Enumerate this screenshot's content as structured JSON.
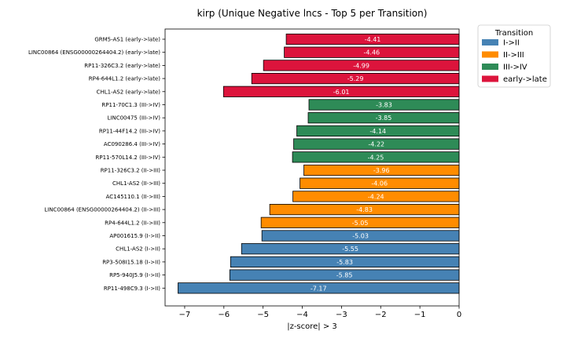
{
  "chart_data": {
    "type": "bar",
    "orientation": "horizontal",
    "title": "kirp (Unique Negative lncs - Top 5 per Transition)",
    "xlabel": "|z-score| > 3",
    "ylabel": "",
    "xlim": [
      -7.5,
      0
    ],
    "xticks": [
      -7,
      -6,
      -5,
      -4,
      -3,
      -2,
      -1,
      0
    ],
    "grid": false,
    "legend": {
      "title": "Transition",
      "placement": "outside right",
      "entries": [
        {
          "name": "I->II",
          "color": "#4682b4"
        },
        {
          "name": "II->III",
          "color": "#ff8c00"
        },
        {
          "name": "III->IV",
          "color": "#2e8b57"
        },
        {
          "name": "early->late",
          "color": "#dc143c"
        }
      ]
    },
    "bars": [
      {
        "label": "GRM5-AS1 (early->late)",
        "value": -4.41,
        "value_label": "-4.41",
        "group": "early->late"
      },
      {
        "label": "LINC00864 (ENSG00000264404.2) (early->late)",
        "value": -4.46,
        "value_label": "-4.46",
        "group": "early->late"
      },
      {
        "label": "RP11-326C3.2 (early->late)",
        "value": -4.99,
        "value_label": "-4.99",
        "group": "early->late"
      },
      {
        "label": "RP4-644L1.2 (early->late)",
        "value": -5.29,
        "value_label": "-5.29",
        "group": "early->late"
      },
      {
        "label": "CHL1-AS2 (early->late)",
        "value": -6.01,
        "value_label": "-6.01",
        "group": "early->late"
      },
      {
        "label": "RP11-70C1.3 (III->IV)",
        "value": -3.83,
        "value_label": "-3.83",
        "group": "III->IV"
      },
      {
        "label": "LINC00475 (III->IV)",
        "value": -3.85,
        "value_label": "-3.85",
        "group": "III->IV"
      },
      {
        "label": "RP11-44F14.2 (III->IV)",
        "value": -4.14,
        "value_label": "-4.14",
        "group": "III->IV"
      },
      {
        "label": "AC090286.4 (III->IV)",
        "value": -4.22,
        "value_label": "-4.22",
        "group": "III->IV"
      },
      {
        "label": "RP11-570L14.2 (III->IV)",
        "value": -4.25,
        "value_label": "-4.25",
        "group": "III->IV"
      },
      {
        "label": "RP11-326C3.2 (II->III)",
        "value": -3.96,
        "value_label": "-3.96",
        "group": "II->III"
      },
      {
        "label": "CHL1-AS2 (II->III)",
        "value": -4.06,
        "value_label": "-4.06",
        "group": "II->III"
      },
      {
        "label": "AC145110.1 (II->III)",
        "value": -4.24,
        "value_label": "-4.24",
        "group": "II->III"
      },
      {
        "label": "LINC00864 (ENSG00000264404.2) (II->III)",
        "value": -4.83,
        "value_label": "-4.83",
        "group": "II->III"
      },
      {
        "label": "RP4-644L1.2 (II->III)",
        "value": -5.05,
        "value_label": "-5.05",
        "group": "II->III"
      },
      {
        "label": "AP001615.9 (I->II)",
        "value": -5.03,
        "value_label": "-5.03",
        "group": "I->II"
      },
      {
        "label": "CHL1-AS2 (I->II)",
        "value": -5.55,
        "value_label": "-5.55",
        "group": "I->II"
      },
      {
        "label": "RP3-508I15.18 (I->II)",
        "value": -5.83,
        "value_label": "-5.83",
        "group": "I->II"
      },
      {
        "label": "RP5-940J5.9 (I->II)",
        "value": -5.85,
        "value_label": "-5.85",
        "group": "I->II"
      },
      {
        "label": "RP11-498C9.3 (I->II)",
        "value": -7.17,
        "value_label": "-7.17",
        "group": "I->II"
      }
    ]
  }
}
